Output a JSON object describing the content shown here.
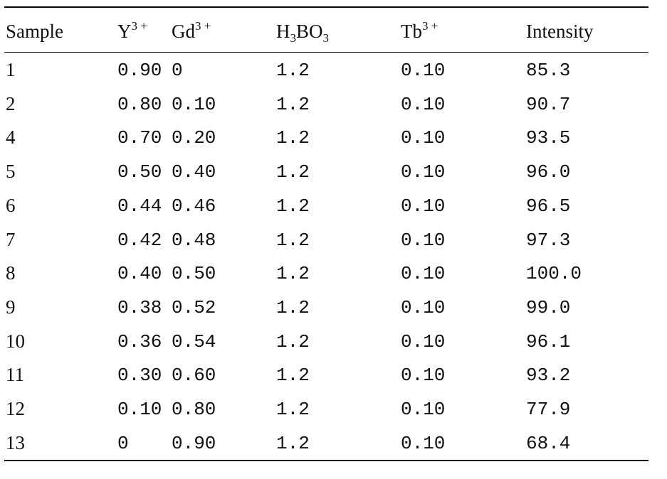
{
  "table": {
    "headers": {
      "sample": "Sample",
      "y": {
        "base": "Y",
        "sup": "3 +"
      },
      "gd": {
        "base": "Gd",
        "sup": "3 +"
      },
      "h3bo3": {
        "h": "H",
        "h_sub": "3",
        "bo": "BO",
        "bo_sub": "3"
      },
      "tb": {
        "base": "Tb",
        "sup": "3 +"
      },
      "intensity": "Intensity"
    },
    "rows": [
      {
        "sample": "1",
        "y": "0.90",
        "gd": "0",
        "h3bo3": "1.2",
        "tb": "0.10",
        "intensity": "85.3"
      },
      {
        "sample": "2",
        "y": "0.80",
        "gd": "0.10",
        "h3bo3": "1.2",
        "tb": "0.10",
        "intensity": "90.7"
      },
      {
        "sample": "4",
        "y": "0.70",
        "gd": "0.20",
        "h3bo3": "1.2",
        "tb": "0.10",
        "intensity": "93.5"
      },
      {
        "sample": "5",
        "y": "0.50",
        "gd": "0.40",
        "h3bo3": "1.2",
        "tb": "0.10",
        "intensity": "96.0"
      },
      {
        "sample": "6",
        "y": "0.44",
        "gd": "0.46",
        "h3bo3": "1.2",
        "tb": "0.10",
        "intensity": "96.5"
      },
      {
        "sample": "7",
        "y": "0.42",
        "gd": "0.48",
        "h3bo3": "1.2",
        "tb": "0.10",
        "intensity": "97.3"
      },
      {
        "sample": "8",
        "y": "0.40",
        "gd": "0.50",
        "h3bo3": "1.2",
        "tb": "0.10",
        "intensity": "100.0"
      },
      {
        "sample": "9",
        "y": "0.38",
        "gd": "0.52",
        "h3bo3": "1.2",
        "tb": "0.10",
        "intensity": "99.0"
      },
      {
        "sample": "10",
        "y": "0.36",
        "gd": "0.54",
        "h3bo3": "1.2",
        "tb": "0.10",
        "intensity": "96.1"
      },
      {
        "sample": "11",
        "y": "0.30",
        "gd": "0.60",
        "h3bo3": "1.2",
        "tb": "0.10",
        "intensity": "93.2"
      },
      {
        "sample": "12",
        "y": "0.10",
        "gd": "0.80",
        "h3bo3": "1.2",
        "tb": "0.10",
        "intensity": "77.9"
      },
      {
        "sample": "13",
        "y": "0",
        "gd": "0.90",
        "h3bo3": "1.2",
        "tb": "0.10",
        "intensity": "68.4"
      }
    ]
  }
}
